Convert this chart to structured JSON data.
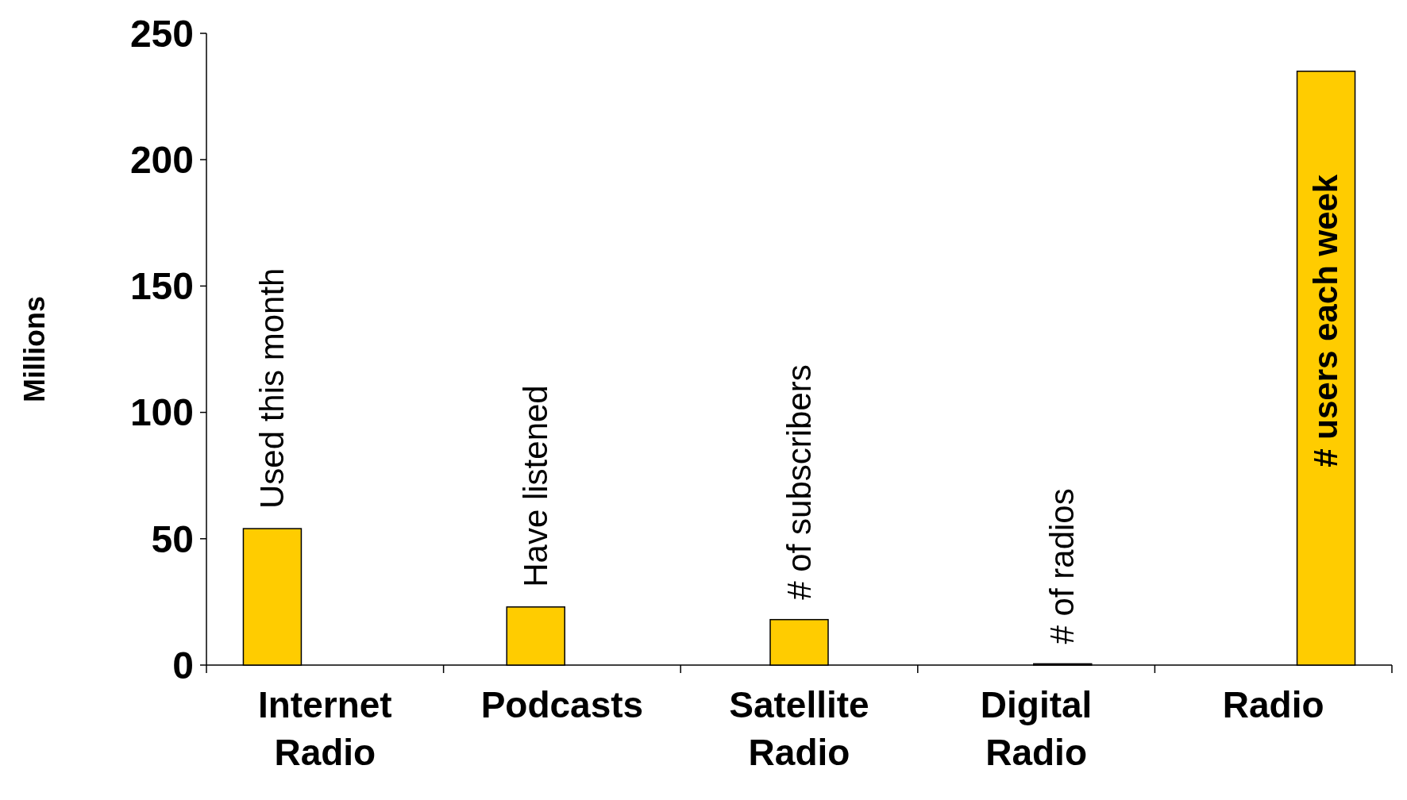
{
  "chart_data": {
    "type": "bar",
    "ylabel": "Millions",
    "categories": [
      "Internet Radio",
      "Podcasts",
      "Satellite Radio",
      "Digital Radio",
      "Radio"
    ],
    "values": [
      54,
      23,
      18,
      0.5,
      235
    ],
    "color": "#ffcc00",
    "ylim": [
      0,
      250
    ],
    "yticks": [
      0,
      50,
      100,
      150,
      200,
      250
    ],
    "grid": false,
    "annotations": [
      "Used this month",
      "Have listened",
      "# of subscribers",
      "# of radios",
      "# users each week"
    ]
  }
}
